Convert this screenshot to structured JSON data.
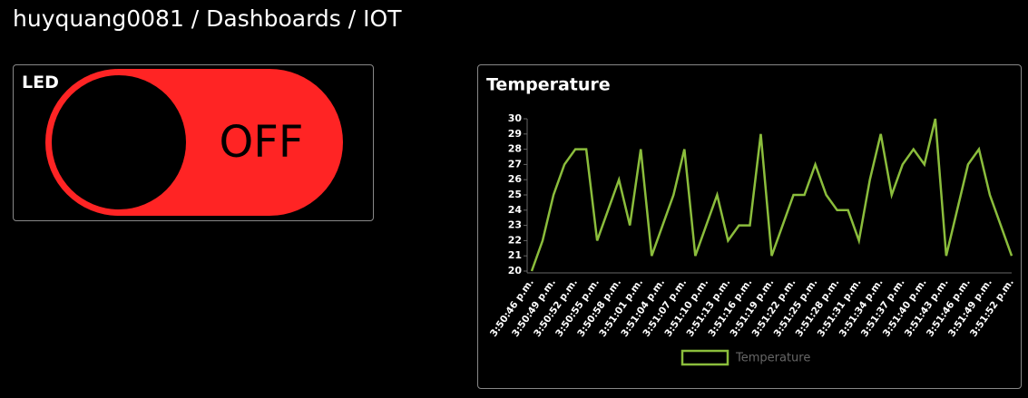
{
  "header": {
    "title": "huyquang0081 / Dashboards / IOT"
  },
  "led": {
    "title": "LED",
    "state": "OFF"
  },
  "chart_data": {
    "type": "line",
    "title": "Temperature",
    "categories": [
      "3:50:46 p.m.",
      null,
      "3:50:49 p.m.",
      null,
      "3:50:52 p.m.",
      null,
      "3:50:55 p.m.",
      null,
      "3:50:58 p.m.",
      null,
      "3:51:01 p.m.",
      null,
      "3:51:04 p.m.",
      null,
      "3:51:07 p.m.",
      null,
      "3:51:10 p.m.",
      null,
      "3:51:13 p.m.",
      null,
      "3:51:16 p.m.",
      null,
      "3:51:19 p.m.",
      null,
      "3:51:22 p.m.",
      null,
      "3:51:25 p.m.",
      null,
      "3:51:28 p.m.",
      null,
      "3:51:31 p.m.",
      null,
      "3:51:34 p.m.",
      null,
      "3:51:37 p.m.",
      null,
      "3:51:40 p.m.",
      null,
      "3:51:43 p.m.",
      null,
      "3:51:46 p.m.",
      null,
      "3:51:49 p.m.",
      null,
      "3:51:52 p.m."
    ],
    "series": [
      {
        "name": "Temperature",
        "color": "#8bbd3c",
        "values": [
          20,
          22,
          25,
          27,
          28,
          28,
          22,
          24,
          26,
          23,
          28,
          21,
          23,
          25,
          28,
          21,
          23,
          25,
          22,
          23,
          23,
          29,
          21,
          23,
          25,
          25,
          27,
          25,
          24,
          24,
          22,
          26,
          29,
          25,
          27,
          28,
          27,
          30,
          21,
          24,
          27,
          28,
          25,
          23,
          21
        ]
      }
    ],
    "ylim": [
      20,
      30
    ],
    "yticks": [
      20,
      21,
      22,
      23,
      24,
      25,
      26,
      27,
      28,
      29,
      30
    ],
    "grid": false,
    "legend": "bottom"
  }
}
